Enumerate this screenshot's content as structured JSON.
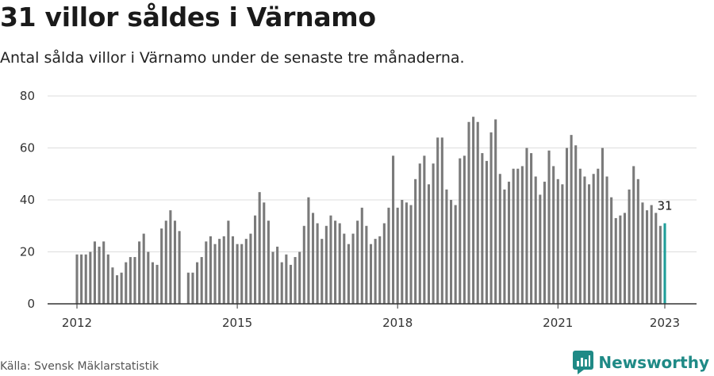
{
  "title": "31 villor såldes i Värnamo",
  "subtitle": "Antal sålda villor i Värnamo under de senaste tre månaderna.",
  "source": "Källa: Svensk Mäklarstatistik",
  "brand": "Newsworthy",
  "colors": {
    "bar": "#7a7a7a",
    "highlight": "#1f9e99",
    "grid": "#dddddd",
    "brand": "#1f8a86"
  },
  "chart_data": {
    "type": "bar",
    "title": "31 villor såldes i Värnamo",
    "subtitle": "Antal sålda villor i Värnamo under de senaste tre månaderna.",
    "xlabel": "",
    "ylabel": "",
    "ylim": [
      0,
      80
    ],
    "yticks": [
      0,
      20,
      40,
      60,
      80
    ],
    "xticks": [
      "2012",
      "2015",
      "2018",
      "2021",
      "2023"
    ],
    "grid": true,
    "highlight_last": true,
    "last_label": "31",
    "series": [
      {
        "values": [
          19,
          19,
          19,
          20,
          24,
          22,
          24,
          19,
          14,
          11,
          12,
          16,
          18,
          18,
          24,
          27,
          20,
          16,
          15,
          29,
          32,
          36,
          32,
          28,
          null,
          12,
          12,
          16,
          18,
          24,
          26,
          23,
          25,
          26,
          32,
          26,
          23,
          23,
          25,
          27,
          34,
          43,
          39,
          32,
          20,
          22,
          16,
          19,
          15,
          18,
          20,
          30,
          41,
          35,
          31,
          25,
          30,
          34,
          32,
          31,
          27,
          23,
          27,
          32,
          37,
          30,
          23,
          25,
          26,
          31,
          37,
          57,
          37,
          40,
          39,
          38,
          48,
          54,
          57,
          46,
          54,
          64,
          64,
          44,
          40,
          38,
          56,
          57,
          70,
          72,
          70,
          58,
          55,
          66,
          71,
          50,
          44,
          47,
          52,
          52,
          53,
          60,
          58,
          49,
          42,
          47,
          59,
          53,
          48,
          46,
          60,
          65,
          61,
          52,
          49,
          46,
          50,
          52,
          60,
          49,
          41,
          33,
          34,
          35,
          44,
          53,
          48,
          39,
          36,
          38,
          35,
          30,
          31
        ]
      }
    ]
  }
}
